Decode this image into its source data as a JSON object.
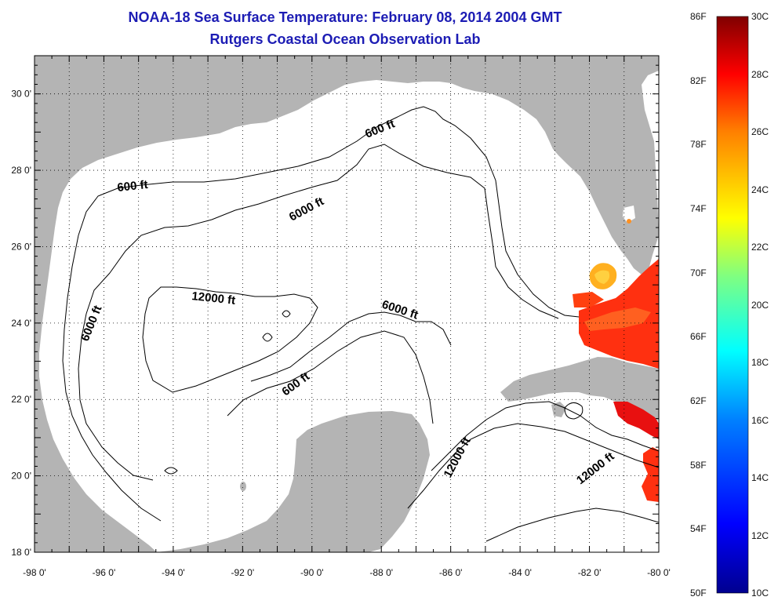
{
  "header": {
    "title": "NOAA-18 Sea Surface Temperature:  February 08, 2014 2004 GMT",
    "subtitle": "Rutgers Coastal Ocean Observation Lab"
  },
  "map": {
    "lon_range": [
      -98,
      -80
    ],
    "lat_range": [
      18,
      31
    ],
    "lon_ticks": [
      "-98 0'",
      "-96 0'",
      "-94 0'",
      "-92 0'",
      "-90 0'",
      "-88 0'",
      "-86 0'",
      "-84 0'",
      "-82 0'",
      "-80 0'"
    ],
    "lat_ticks": [
      "30 0'",
      "28 0'",
      "26 0'",
      "24 0'",
      "22 0'",
      "20 0'",
      "18 0'"
    ],
    "land_color": "#b4b4b4",
    "contour_labels": [
      {
        "text": "600 ft"
      },
      {
        "text": "600 ft"
      },
      {
        "text": "6000 ft"
      },
      {
        "text": "6000 ft"
      },
      {
        "text": "12000 ft"
      },
      {
        "text": "6000 ft"
      },
      {
        "text": "600 ft"
      },
      {
        "text": "12000 ft"
      },
      {
        "text": "12000 ft"
      }
    ]
  },
  "colorbar": {
    "fahrenheit": [
      "86F",
      "82F",
      "78F",
      "74F",
      "70F",
      "66F",
      "62F",
      "58F",
      "54F",
      "50F"
    ],
    "celsius": [
      "30C",
      "28C",
      "26C",
      "24C",
      "22C",
      "20C",
      "18C",
      "16C",
      "14C",
      "12C",
      "10C"
    ],
    "colors": [
      "#00008f",
      "#0000ff",
      "#0080ff",
      "#00ffff",
      "#80ff80",
      "#ffff00",
      "#ff8000",
      "#ff0000",
      "#800000"
    ]
  }
}
